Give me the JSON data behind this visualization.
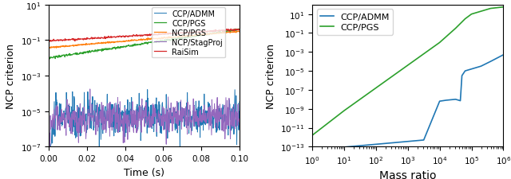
{
  "left": {
    "xlabel": "Time (s)",
    "ylabel": "NCP criterion",
    "xlim": [
      0.0,
      0.1
    ],
    "ylim": [
      1e-07,
      10
    ],
    "legend_labels": [
      "CCP/ADMM",
      "CCP/PGS",
      "NCP/PGS",
      "NCP/StagProj",
      "RaiSim"
    ],
    "legend_colors": [
      "#1f77b4",
      "#2ca02c",
      "#ff7f0e",
      "#9467bd",
      "#d62728"
    ]
  },
  "right": {
    "xlabel": "Mass ratio",
    "ylabel": "NCP criterion",
    "xlim": [
      1.0,
      1000000.0
    ],
    "ylim": [
      1e-13,
      100.0
    ],
    "series": [
      {
        "label": "CCP/ADMM",
        "color": "#1f77b4",
        "x_log": [
          0.0,
          0.3,
          0.7,
          1.0,
          1.5,
          2.0,
          2.5,
          3.0,
          3.5,
          4.0,
          4.2,
          4.5,
          4.65,
          4.7,
          4.8,
          5.0,
          5.3,
          5.6,
          6.0
        ],
        "y_log": [
          -13.3,
          -13.25,
          -13.15,
          -13.05,
          -12.9,
          -12.75,
          -12.6,
          -12.45,
          -12.3,
          -8.2,
          -8.1,
          -8.0,
          -8.15,
          -5.5,
          -5.0,
          -4.8,
          -4.5,
          -4.0,
          -3.3
        ]
      },
      {
        "label": "CCP/PGS",
        "color": "#2ca02c",
        "x_log": [
          0.0,
          0.5,
          1.0,
          1.5,
          2.0,
          2.5,
          3.0,
          3.5,
          4.0,
          4.5,
          4.8,
          5.0,
          5.3,
          5.6,
          6.0
        ],
        "y_log": [
          -11.8,
          -10.5,
          -9.2,
          -8.0,
          -6.8,
          -5.6,
          -4.4,
          -3.2,
          -2.0,
          -0.5,
          0.5,
          1.0,
          1.3,
          1.6,
          1.75
        ]
      }
    ]
  }
}
